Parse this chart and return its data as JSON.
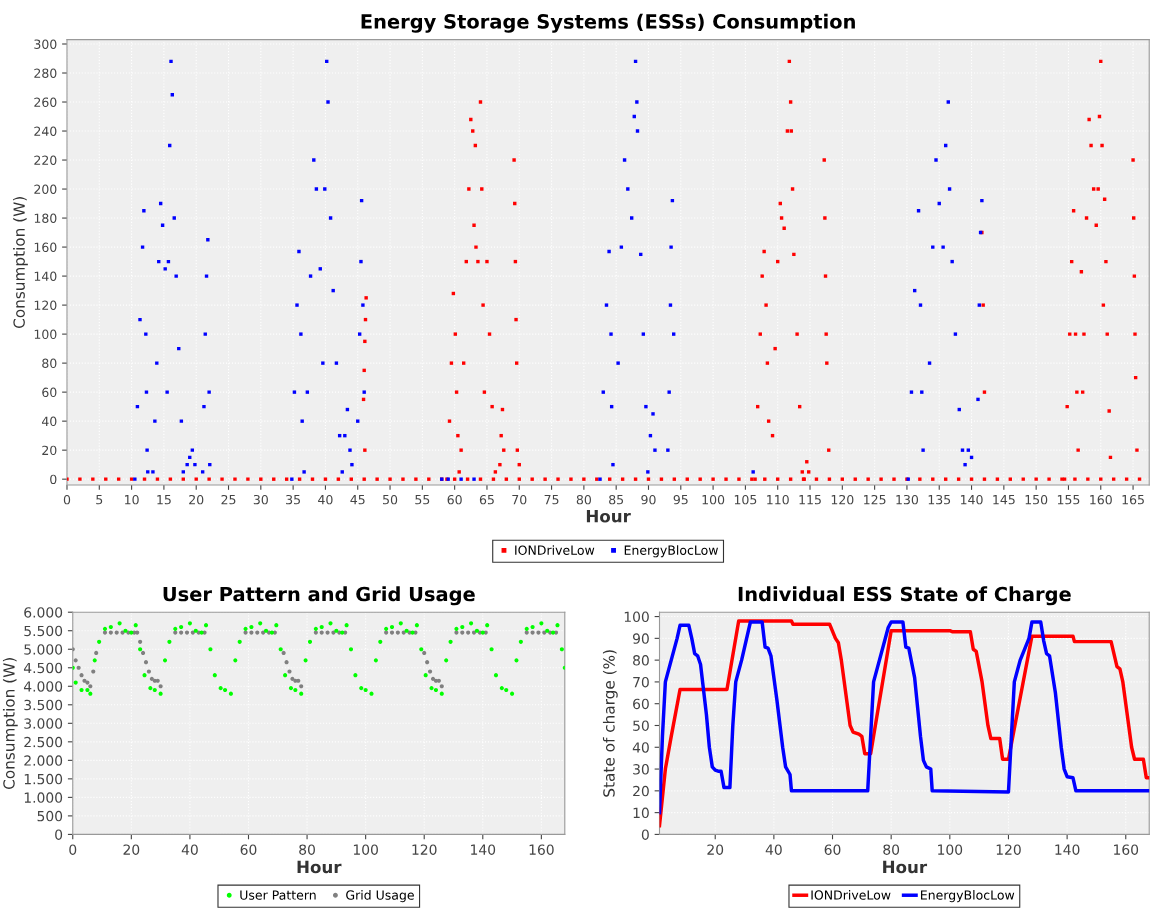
{
  "chart_data": [
    {
      "type": "scatter",
      "title": "Energy Storage Systems (ESSs) Consumption",
      "xlabel": "Hour",
      "ylabel": "Consumption (W)",
      "xlim": [
        0,
        167.5
      ],
      "ylim": [
        -4,
        303
      ],
      "xticks": [
        0,
        5,
        10,
        15,
        20,
        25,
        30,
        35,
        40,
        45,
        50,
        55,
        60,
        65,
        70,
        75,
        80,
        85,
        90,
        95,
        100,
        105,
        110,
        115,
        120,
        125,
        130,
        135,
        140,
        145,
        150,
        155,
        160,
        165
      ],
      "yticks": [
        0,
        20,
        40,
        60,
        80,
        100,
        120,
        140,
        160,
        180,
        200,
        220,
        240,
        260,
        280,
        300
      ],
      "grid": true,
      "legend": "bottom",
      "marker": "square",
      "series": [
        {
          "name": "IONDriveLow",
          "color": "#ff0000",
          "x": [
            0,
            2,
            4,
            6,
            8,
            10,
            12,
            14,
            16,
            18,
            20,
            22,
            24,
            26,
            28,
            30,
            32,
            34,
            36,
            38,
            40,
            42,
            44,
            46,
            48,
            50,
            52,
            54,
            56,
            58,
            60,
            62,
            64,
            66,
            68,
            70,
            72,
            74,
            76,
            78,
            80,
            82,
            84,
            86,
            88,
            90,
            92,
            94,
            96,
            98,
            100,
            102,
            104,
            106,
            108,
            110,
            112,
            114,
            116,
            118,
            120,
            122,
            124,
            126,
            128,
            130,
            132,
            134,
            136,
            138,
            140,
            142,
            144,
            146,
            148,
            150,
            152,
            154,
            156,
            158,
            160,
            162,
            164,
            166,
            45.9,
            46.0,
            46.1,
            46.2,
            46.3,
            46.1,
            58.8,
            59.2,
            59.5,
            59.8,
            60.1,
            60.3,
            60.5,
            60.7,
            61.0,
            61.4,
            61.8,
            62.2,
            62.5,
            62.8,
            63.2,
            63.0,
            63.3,
            63.6,
            64.0,
            64.2,
            64.4,
            64.6,
            65.0,
            65.4,
            65.8,
            66.3,
            67.0,
            67.2,
            67.4,
            67.6,
            69.2,
            69.3,
            69.4,
            69.5,
            69.6,
            69.7,
            70.0,
            106.5,
            106.9,
            107.3,
            107.6,
            107.9,
            108.2,
            108.4,
            108.6,
            109.2,
            109.6,
            110.0,
            110.4,
            110.6,
            111.0,
            111.5,
            111.8,
            112.0,
            112.1,
            112.3,
            112.5,
            113.0,
            113.4,
            113.8,
            114.1,
            114.5,
            114.8,
            117.2,
            117.3,
            117.4,
            117.5,
            117.6,
            117.9,
            141.6,
            141.8,
            142.0,
            154.4,
            154.8,
            155.2,
            155.5,
            155.8,
            156.1,
            156.3,
            156.5,
            157.0,
            157.2,
            157.4,
            157.8,
            158.2,
            158.5,
            158.9,
            159.3,
            159.6,
            159.8,
            160.0,
            160.2,
            160.4,
            160.6,
            160.8,
            161.0,
            161.3,
            161.5,
            165.0,
            165.1,
            165.2,
            165.3,
            165.4,
            165.6
          ],
          "values": [
            0,
            0,
            0,
            0,
            0,
            0,
            0,
            0,
            0,
            0,
            0,
            0,
            0,
            0,
            0,
            0,
            0,
            0,
            0,
            0,
            0,
            0,
            0,
            0,
            0,
            0,
            0,
            0,
            0,
            0,
            0,
            0,
            0,
            0,
            0,
            0,
            0,
            0,
            0,
            0,
            0,
            0,
            0,
            0,
            0,
            0,
            0,
            0,
            0,
            0,
            0,
            0,
            0,
            0,
            0,
            0,
            0,
            0,
            0,
            0,
            0,
            0,
            0,
            0,
            0,
            0,
            0,
            0,
            0,
            0,
            0,
            0,
            0,
            0,
            0,
            0,
            0,
            0,
            0,
            0,
            0,
            0,
            0,
            0,
            55,
            75,
            95,
            110,
            125,
            20,
            0,
            40,
            80,
            128,
            100,
            60,
            30,
            5,
            20,
            80,
            150,
            200,
            248,
            240,
            230,
            175,
            160,
            150,
            260,
            200,
            120,
            60,
            150,
            100,
            50,
            5,
            10,
            30,
            48,
            20,
            220,
            190,
            150,
            110,
            80,
            20,
            10,
            0,
            50,
            100,
            140,
            157,
            120,
            80,
            40,
            30,
            90,
            150,
            190,
            180,
            173,
            240,
            288,
            260,
            240,
            200,
            155,
            100,
            50,
            5,
            0,
            12,
            5,
            220,
            180,
            140,
            100,
            80,
            20,
            170,
            120,
            60,
            0,
            50,
            100,
            150,
            185,
            100,
            60,
            20,
            143,
            60,
            100,
            180,
            248,
            230,
            200,
            175,
            200,
            250,
            288,
            230,
            120,
            193,
            150,
            100,
            47,
            15,
            220,
            180,
            140,
            100,
            70,
            20
          ]
        },
        {
          "name": "EnergyBlocLow",
          "color": "#0000ff",
          "x": [
            10.5,
            10.9,
            11.3,
            11.7,
            11.9,
            12.2,
            12.3,
            12.4,
            12.5,
            13.3,
            13.6,
            13.9,
            14.2,
            14.5,
            14.8,
            15.2,
            15.5,
            15.7,
            15.9,
            16.1,
            16.3,
            16.6,
            16.9,
            17.3,
            17.7,
            18.0,
            18.6,
            19.0,
            19.4,
            19.8,
            21.0,
            21.2,
            21.4,
            21.6,
            21.8,
            22.0,
            22.1,
            34.8,
            35.2,
            35.6,
            35.9,
            36.2,
            36.4,
            36.7,
            37.2,
            37.7,
            38.2,
            38.6,
            39.2,
            39.6,
            39.9,
            40.2,
            40.4,
            40.8,
            41.2,
            41.7,
            42.2,
            42.6,
            43.0,
            43.4,
            43.8,
            44.1,
            45.0,
            45.3,
            45.5,
            45.6,
            45.8,
            46.0,
            58.0,
            59.0,
            61.0,
            63.0,
            82.5,
            83.0,
            83.5,
            83.9,
            84.2,
            84.3,
            84.5,
            85.3,
            85.8,
            86.3,
            86.8,
            87.4,
            87.8,
            88.0,
            88.2,
            88.3,
            88.8,
            89.2,
            89.6,
            89.9,
            90.3,
            90.7,
            91.0,
            93.0,
            93.2,
            93.4,
            93.5,
            93.7,
            93.9,
            106.2,
            130.2,
            130.7,
            131.2,
            131.8,
            132.1,
            132.3,
            132.5,
            133.5,
            134.0,
            134.5,
            135.0,
            135.6,
            136.0,
            136.4,
            136.6,
            137.0,
            137.5,
            138.1,
            138.6,
            139.0,
            139.5,
            140.0,
            141.0,
            141.2,
            141.4,
            141.6
          ],
          "values": [
            0,
            50,
            110,
            160,
            185,
            100,
            60,
            20,
            5,
            5,
            40,
            80,
            150,
            190,
            175,
            145,
            60,
            150,
            230,
            288,
            265,
            180,
            140,
            90,
            40,
            5,
            10,
            15,
            20,
            10,
            5,
            50,
            100,
            140,
            165,
            60,
            10,
            0,
            60,
            120,
            157,
            100,
            40,
            5,
            60,
            140,
            220,
            200,
            145,
            80,
            200,
            288,
            260,
            180,
            130,
            80,
            30,
            5,
            30,
            48,
            20,
            10,
            40,
            100,
            150,
            192,
            120,
            60,
            0,
            0,
            0,
            0,
            0,
            60,
            120,
            157,
            100,
            50,
            10,
            80,
            160,
            220,
            200,
            180,
            250,
            288,
            260,
            240,
            155,
            100,
            50,
            5,
            30,
            45,
            20,
            20,
            60,
            120,
            160,
            192,
            100,
            5,
            0,
            60,
            130,
            185,
            120,
            60,
            20,
            80,
            160,
            220,
            190,
            160,
            230,
            260,
            200,
            150,
            100,
            48,
            20,
            10,
            20,
            15,
            55,
            120,
            170,
            192
          ]
        }
      ]
    },
    {
      "type": "scatter",
      "title": "User Pattern and Grid Usage",
      "xlabel": "Hour",
      "ylabel": "Consumption (W)",
      "xlim": [
        0,
        168
      ],
      "ylim": [
        0,
        6000
      ],
      "xticks": [
        0,
        20,
        40,
        60,
        80,
        100,
        120,
        140,
        160
      ],
      "yticks": [
        {
          "value": 0,
          "label": "0"
        },
        {
          "value": 500,
          "label": "500"
        },
        {
          "value": 1000,
          "label": "1.000"
        },
        {
          "value": 1500,
          "label": "1.500"
        },
        {
          "value": 2000,
          "label": "2.000"
        },
        {
          "value": 2500,
          "label": "2.500"
        },
        {
          "value": 3000,
          "label": "3.000"
        },
        {
          "value": 3500,
          "label": "3.500"
        },
        {
          "value": 4000,
          "label": "4.000"
        },
        {
          "value": 4500,
          "label": "4.500"
        },
        {
          "value": 5000,
          "label": "5.000"
        },
        {
          "value": 5500,
          "label": "5.500"
        },
        {
          "value": 6000,
          "label": "6.000"
        }
      ],
      "grid": true,
      "legend": "bottom",
      "marker": "circle",
      "series": [
        {
          "name": "User Pattern",
          "color": "#00ff00",
          "x": [
            0,
            1,
            3,
            5,
            6,
            7.5,
            9,
            11,
            13,
            16,
            18,
            20,
            21.5,
            23,
            24.5,
            26.5,
            28,
            30,
            31.5,
            33,
            35,
            37,
            40,
            42,
            44,
            45.5,
            47,
            48.5,
            50.5,
            52,
            54,
            55.5,
            57,
            59,
            61,
            64,
            66,
            68,
            69.5,
            71,
            72.5,
            74.5,
            76,
            78,
            79.5,
            81,
            83,
            85,
            88,
            90,
            92,
            93.5,
            95,
            96.5,
            98.5,
            100,
            102,
            103.5,
            105,
            107,
            109,
            112,
            114,
            116,
            117.5,
            119,
            120.5,
            122.5,
            124,
            126,
            127.5,
            129,
            131,
            133,
            136,
            138,
            140,
            141.5,
            143,
            144.5,
            146.5,
            148,
            150,
            151.5,
            153,
            155,
            157,
            160,
            162,
            164,
            165.5,
            167,
            168
          ],
          "values": [
            4500,
            4100,
            3900,
            3900,
            3800,
            4700,
            5200,
            5550,
            5600,
            5700,
            5500,
            5450,
            5650,
            5000,
            4300,
            3950,
            3900,
            3800,
            4700,
            5200,
            5550,
            5600,
            5700,
            5500,
            5450,
            5650,
            5000,
            4300,
            3950,
            3900,
            3800,
            4700,
            5200,
            5550,
            5600,
            5700,
            5500,
            5450,
            5650,
            5000,
            4300,
            3950,
            3900,
            3800,
            4700,
            5200,
            5550,
            5600,
            5700,
            5500,
            5450,
            5650,
            5000,
            4300,
            3950,
            3900,
            3800,
            4700,
            5200,
            5550,
            5600,
            5700,
            5500,
            5450,
            5650,
            5000,
            4300,
            3950,
            3900,
            3800,
            4700,
            5200,
            5550,
            5600,
            5700,
            5500,
            5450,
            5650,
            5000,
            4300,
            3950,
            3900,
            3800,
            4700,
            5200,
            5550,
            5600,
            5700,
            5500,
            5450,
            5650,
            5000,
            4500
          ]
        },
        {
          "name": "Grid Usage",
          "color": "#808080",
          "x": [
            0,
            1,
            2,
            3,
            4,
            5,
            6,
            7,
            8,
            11,
            13,
            15,
            17,
            19,
            21,
            22,
            23,
            24,
            25,
            26,
            27,
            28,
            29,
            30,
            35,
            37,
            39,
            41,
            43,
            45,
            59,
            61,
            63,
            65,
            67,
            69,
            72,
            73,
            74,
            75,
            76,
            77,
            78,
            83,
            85,
            87,
            89,
            91,
            93,
            107,
            109,
            111,
            113,
            115,
            117,
            120,
            121,
            122,
            123,
            124,
            125,
            126,
            131,
            133,
            135,
            137,
            139,
            141,
            155,
            157,
            159,
            161,
            163,
            165
          ],
          "values": [
            5000,
            4700,
            4500,
            4300,
            4150,
            4100,
            4000,
            4400,
            4900,
            5450,
            5450,
            5450,
            5450,
            5450,
            5450,
            5450,
            5200,
            4900,
            4650,
            4400,
            4200,
            4150,
            4150,
            4000,
            5450,
            5450,
            5450,
            5450,
            5450,
            5450,
            5450,
            5450,
            5450,
            5450,
            5450,
            5450,
            4900,
            4650,
            4400,
            4200,
            4150,
            4150,
            4000,
            5450,
            5450,
            5450,
            5450,
            5450,
            5450,
            5450,
            5450,
            5450,
            5450,
            5450,
            5450,
            4900,
            4650,
            4400,
            4200,
            4150,
            4150,
            4000,
            5450,
            5450,
            5450,
            5450,
            5450,
            5450,
            5450,
            5450,
            5450,
            5450,
            5450,
            5450
          ]
        }
      ]
    },
    {
      "type": "line",
      "title": "Individual ESS State of Charge",
      "xlabel": "Hour",
      "ylabel": "State of charge (%)",
      "xlim": [
        1,
        168
      ],
      "ylim": [
        0,
        102
      ],
      "xticks": [
        20,
        40,
        60,
        80,
        100,
        120,
        140,
        160
      ],
      "yticks": [
        0,
        10,
        20,
        30,
        40,
        50,
        60,
        70,
        80,
        90,
        100
      ],
      "grid": true,
      "legend": "bottom",
      "series": [
        {
          "name": "IONDriveLow",
          "color": "#ff0000",
          "x": [
            1,
            3,
            5,
            8,
            24,
            28,
            46,
            46.5,
            59,
            61,
            62,
            63,
            65,
            66,
            67,
            69,
            70,
            71,
            73,
            80,
            100,
            101,
            107,
            108,
            109,
            111,
            113,
            114,
            117,
            118,
            120,
            128,
            142,
            142.5,
            155,
            157,
            158,
            159,
            161,
            162,
            163,
            166,
            167,
            168
          ],
          "values": [
            4,
            30,
            45,
            66.5,
            66.5,
            98,
            98,
            96.5,
            96.5,
            90,
            88,
            80,
            60,
            50,
            47,
            46,
            45,
            37,
            37,
            93.5,
            93.5,
            93,
            93,
            85,
            84,
            70,
            50,
            44,
            44,
            34.5,
            34.5,
            91,
            91,
            88.5,
            88.5,
            77,
            76,
            70,
            50,
            40,
            34.5,
            34.5,
            26,
            26
          ]
        },
        {
          "name": "EnergyBlocLow",
          "color": "#0000ff",
          "x": [
            1,
            2,
            3,
            5,
            7,
            8,
            11,
            12,
            13,
            14,
            15,
            17,
            18,
            19,
            20,
            21,
            22,
            23,
            25,
            26,
            27,
            29,
            32,
            36,
            37,
            38,
            39,
            41,
            43,
            44,
            45.5,
            46,
            72,
            73,
            74,
            76,
            79,
            80,
            84,
            85,
            86,
            88,
            90,
            91,
            92,
            93.5,
            94,
            120,
            121,
            122,
            124,
            127,
            128,
            131,
            132,
            133,
            134,
            136,
            138,
            139,
            140,
            142,
            143,
            168
          ],
          "values": [
            10,
            45,
            70,
            80,
            90,
            96,
            96,
            90,
            83,
            82,
            78,
            55,
            40,
            31,
            29.5,
            29,
            29,
            21.5,
            21.5,
            50,
            70,
            80,
            97.5,
            97.5,
            86,
            85.5,
            82,
            62,
            40,
            31,
            27.5,
            20,
            20,
            45,
            70,
            80,
            95,
            97.5,
            97.5,
            86,
            85.5,
            72,
            45,
            34,
            31,
            30,
            20,
            19.5,
            45,
            70,
            80,
            90,
            97.5,
            97.5,
            89,
            83,
            82,
            65,
            40,
            30,
            26.5,
            26,
            20,
            20
          ]
        }
      ]
    }
  ]
}
